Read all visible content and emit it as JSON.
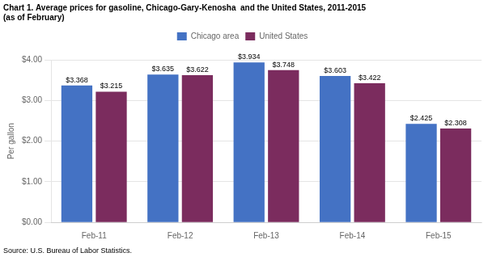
{
  "chart_data": {
    "type": "bar",
    "title": "Chart 1. Average prices for gasoline, Chicago-Gary-Kenosha  and the United States, 2011-2015",
    "subtitle": "(as of February)",
    "ylabel": "Per gallon",
    "annotations": [
      "Source: U.S. Bureau of Labor Statistics."
    ],
    "categories": [
      "Feb-11",
      "Feb-12",
      "Feb-13",
      "Feb-14",
      "Feb-15"
    ],
    "series": [
      {
        "name": "Chicago area",
        "color": "#4472C4",
        "values": [
          3.368,
          3.635,
          3.934,
          3.603,
          2.425
        ],
        "value_labels": [
          "$3.368",
          "$3.635",
          "$3.934",
          "$3.603",
          "$2.425"
        ]
      },
      {
        "name": "United States",
        "color": "#7B2C5E",
        "values": [
          3.215,
          3.622,
          3.748,
          3.422,
          2.308
        ],
        "value_labels": [
          "$3.215",
          "$3.622",
          "$3.748",
          "$3.422",
          "$2.308"
        ]
      }
    ],
    "ylim": [
      0,
      4.0
    ],
    "yticks": [
      {
        "value": 0.0,
        "label": "$0.00"
      },
      {
        "value": 1.0,
        "label": "$1.00"
      },
      {
        "value": 2.0,
        "label": "$2.00"
      },
      {
        "value": 3.0,
        "label": "$3.00"
      },
      {
        "value": 4.0,
        "label": "$4.00"
      }
    ],
    "grid": true,
    "legend": "top",
    "data_labels": true
  }
}
